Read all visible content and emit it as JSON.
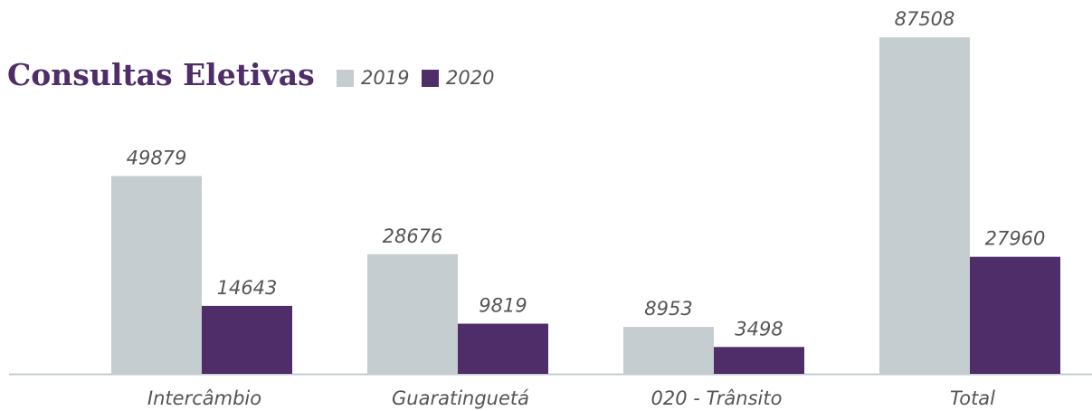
{
  "chart_data": {
    "type": "bar",
    "title": "Consultas Eletivas",
    "categories": [
      "Intercâmbio",
      "Guaratinguetá",
      "020 - Trânsito",
      "Total"
    ],
    "series": [
      {
        "name": "2019",
        "color": "#c5cdd0",
        "values": [
          49879,
          28676,
          8953,
          87508
        ]
      },
      {
        "name": "2020",
        "color": "#4f2d69",
        "values": [
          14643,
          9819,
          3498,
          27960
        ]
      }
    ],
    "ylim": [
      -3800,
      93700
    ]
  }
}
